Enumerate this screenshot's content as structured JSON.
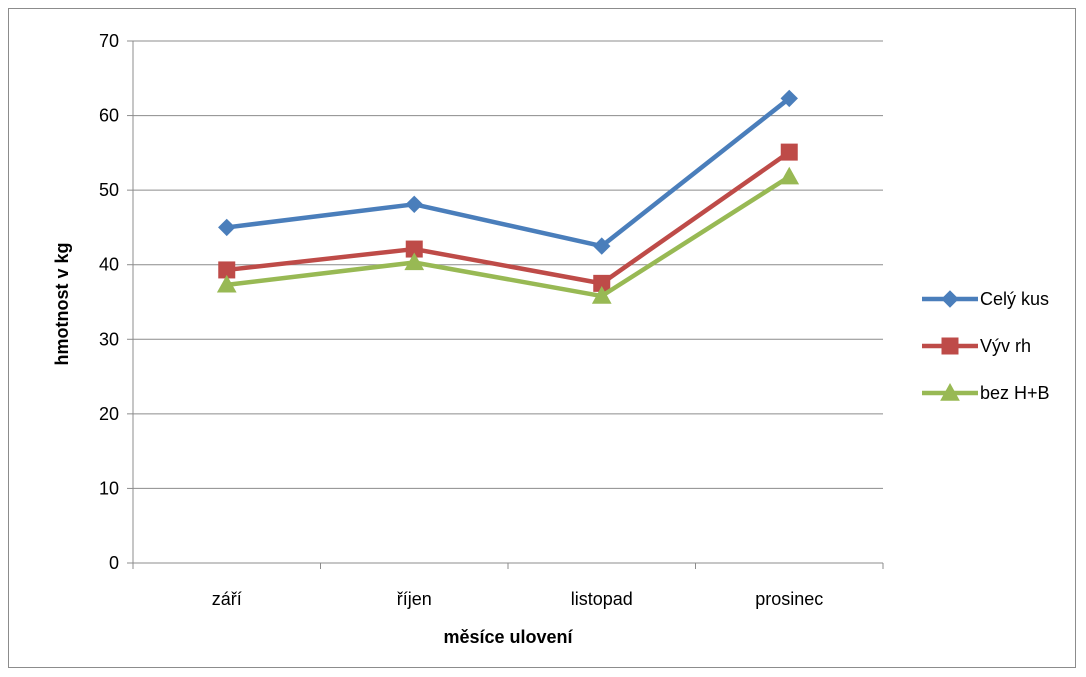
{
  "chart_data": {
    "type": "line",
    "title": "",
    "xlabel": "měsíce ulovení",
    "ylabel": "hmotnost v kg",
    "categories": [
      "září",
      "říjen",
      "listopad",
      "prosinec"
    ],
    "ylim": [
      0,
      70
    ],
    "yticks": [
      0,
      10,
      20,
      30,
      40,
      50,
      60,
      70
    ],
    "grid": true,
    "legend_position": "right",
    "series": [
      {
        "name": "Celý kus",
        "values": [
          45.0,
          48.1,
          42.5,
          62.3
        ],
        "color": "#4a7ebb",
        "marker": "diamond"
      },
      {
        "name": "Výv rh",
        "values": [
          39.3,
          42.1,
          37.5,
          55.1
        ],
        "color": "#be4b48",
        "marker": "square"
      },
      {
        "name": "bez H+B",
        "values": [
          37.3,
          40.3,
          35.8,
          51.8
        ],
        "color": "#98b954",
        "marker": "triangle"
      }
    ]
  }
}
